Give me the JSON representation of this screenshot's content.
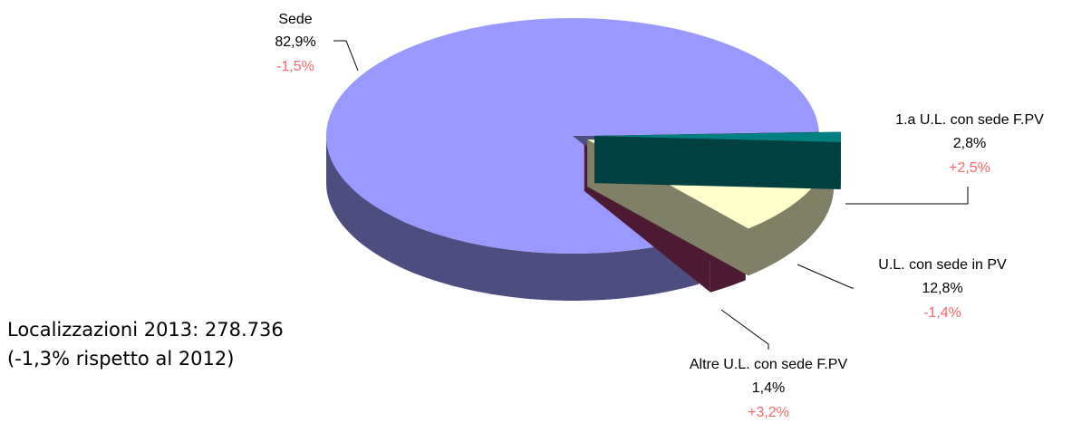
{
  "chart_data": {
    "type": "pie",
    "title": "",
    "style": "3d-exploded",
    "slices": [
      {
        "label": "Sede",
        "value": 82.9,
        "percent_label": "82,9%",
        "change_label": "-1,5%",
        "top_color": "#9999ff",
        "side_color": "#4d4d80"
      },
      {
        "label": "1.a U.L. con sede F.PV",
        "value": 2.8,
        "percent_label": "2,8%",
        "change_label": "+2,5%",
        "top_color": "#993366",
        "side_color": "#4d1a33"
      },
      {
        "label": "U.L. con sede in PV",
        "value": 12.8,
        "percent_label": "12,8%",
        "change_label": "-1,4%",
        "top_color": "#ffffcc",
        "side_color": "#808066"
      },
      {
        "label": "Altre U.L. con sede F.PV",
        "value": 1.4,
        "percent_label": "1,4%",
        "change_label": "+3,2%",
        "top_color": "#008080",
        "side_color": "#004040"
      }
    ],
    "change_color": "#ff6666"
  },
  "summary": {
    "line1": "Localizzazioni 2013: 278.736",
    "line2": "(-1,3% rispetto al 2012)"
  }
}
